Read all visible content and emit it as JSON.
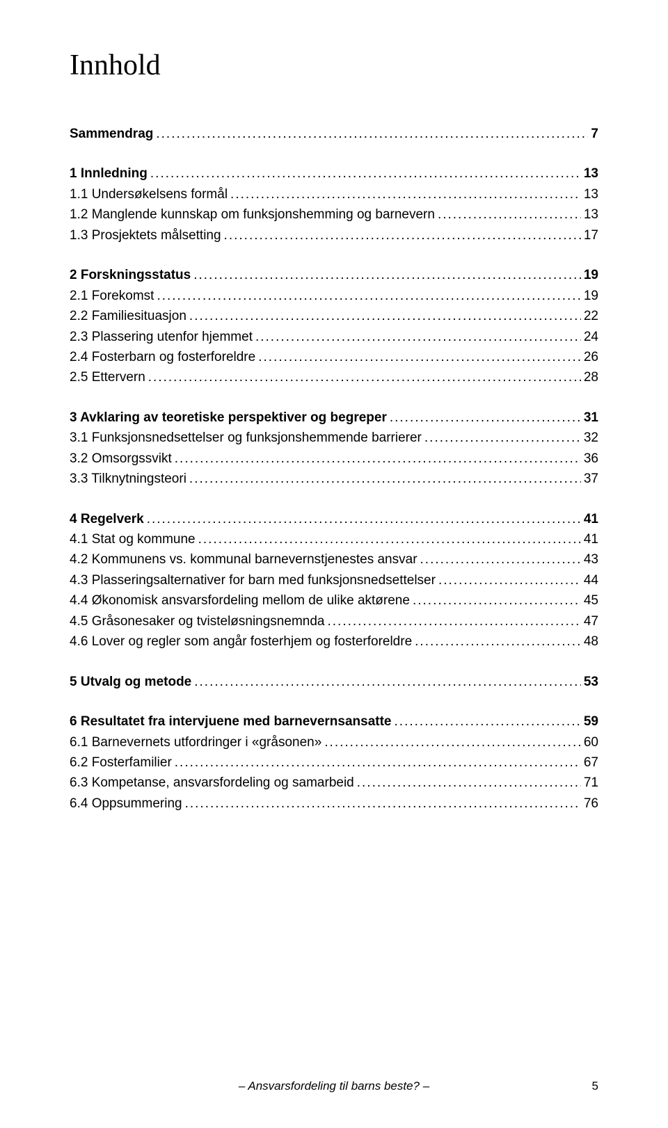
{
  "title": "Innhold",
  "footer": {
    "text": "– Ansvarsfordeling til barns beste? –",
    "page_number": "5"
  },
  "font": {
    "title_family": "Times New Roman",
    "body_family": "Arial",
    "title_size_pt": 31,
    "body_size_pt": 14
  },
  "colors": {
    "text": "#000000",
    "background": "#ffffff"
  },
  "toc": [
    [
      {
        "label": "Sammendrag",
        "page": "7",
        "bold": true
      }
    ],
    [
      {
        "label": "1 Innledning",
        "page": "13",
        "bold": true
      },
      {
        "label": "1.1 Undersøkelsens formål",
        "page": "13",
        "bold": false
      },
      {
        "label": "1.2 Manglende kunnskap om funksjonshemming og barnevern",
        "page": "13",
        "bold": false
      },
      {
        "label": "1.3 Prosjektets målsetting",
        "page": "17",
        "bold": false
      }
    ],
    [
      {
        "label": "2 Forskningsstatus",
        "page": "19",
        "bold": true
      },
      {
        "label": "2.1 Forekomst",
        "page": "19",
        "bold": false
      },
      {
        "label": "2.2 Familiesituasjon",
        "page": "22",
        "bold": false
      },
      {
        "label": "2.3 Plassering utenfor hjemmet",
        "page": "24",
        "bold": false
      },
      {
        "label": "2.4 Fosterbarn og fosterforeldre",
        "page": "26",
        "bold": false
      },
      {
        "label": "2.5 Ettervern",
        "page": "28",
        "bold": false
      }
    ],
    [
      {
        "label": "3 Avklaring av teoretiske perspektiver og begreper",
        "page": "31",
        "bold": true
      },
      {
        "label": "3.1 Funksjonsnedsettelser og funksjonshemmende barrierer",
        "page": "32",
        "bold": false
      },
      {
        "label": "3.2 Omsorgssvikt",
        "page": "36",
        "bold": false
      },
      {
        "label": "3.3 Tilknytningsteori",
        "page": "37",
        "bold": false
      }
    ],
    [
      {
        "label": "4 Regelverk",
        "page": "41",
        "bold": true
      },
      {
        "label": "4.1 Stat og kommune",
        "page": "41",
        "bold": false
      },
      {
        "label": "4.2 Kommunens vs. kommunal barnevernstjenestes ansvar",
        "page": "43",
        "bold": false
      },
      {
        "label": "4.3 Plasseringsalternativer for barn med funksjonsnedsettelser",
        "page": "44",
        "bold": false
      },
      {
        "label": "4.4 Økonomisk ansvarsfordeling mellom de ulike aktørene",
        "page": "45",
        "bold": false
      },
      {
        "label": "4.5 Gråsonesaker og tvisteløsningsnemnda",
        "page": "47",
        "bold": false
      },
      {
        "label": "4.6 Lover og regler som angår fosterhjem og fosterforeldre",
        "page": "48",
        "bold": false
      }
    ],
    [
      {
        "label": "5 Utvalg og metode",
        "page": "53",
        "bold": true
      }
    ],
    [
      {
        "label": "6 Resultatet fra intervjuene med barnevernsansatte",
        "page": "59",
        "bold": true
      },
      {
        "label": "6.1 Barnevernets utfordringer i «gråsonen»",
        "page": "60",
        "bold": false
      },
      {
        "label": "6.2 Fosterfamilier",
        "page": "67",
        "bold": false
      },
      {
        "label": "6.3 Kompetanse, ansvarsfordeling og samarbeid",
        "page": "71",
        "bold": false
      },
      {
        "label": "6.4 Oppsummering",
        "page": "76",
        "bold": false
      }
    ]
  ]
}
